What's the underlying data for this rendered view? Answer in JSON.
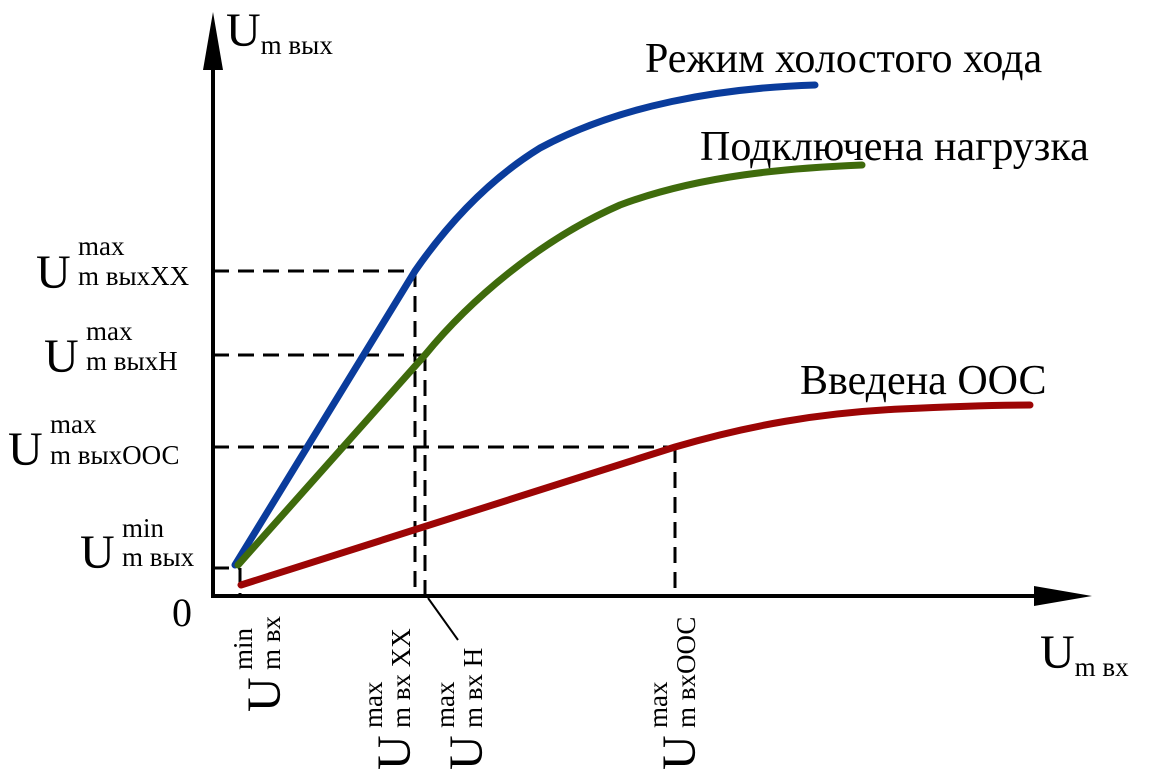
{
  "axes": {
    "y_symbol": "U",
    "y_sub": "m вых",
    "x_symbol": "U",
    "x_sub": "m вх",
    "origin": "0"
  },
  "curves": {
    "idle": {
      "label": "Режим холостого хода",
      "color": "#0a3c9c"
    },
    "load": {
      "label": "Подключена нагрузка",
      "color": "#3f6b0c"
    },
    "feedback": {
      "label": "Введена ООС",
      "color": "#9c0505"
    }
  },
  "y_marks": {
    "idle_max": {
      "symbol": "U",
      "sup": "max",
      "sub": "m выхXX"
    },
    "load_max": {
      "symbol": "U",
      "sup": "max",
      "sub": "m выхН"
    },
    "fb_max": {
      "symbol": "U",
      "sup": "max",
      "sub": "m выхООС"
    },
    "min": {
      "symbol": "U",
      "sup": "min",
      "sub": "m вых"
    }
  },
  "x_marks": {
    "min": {
      "symbol": "U",
      "sup": "min",
      "sub": "m вх"
    },
    "idle_max": {
      "symbol": "U",
      "sup": "max",
      "sub": "m вх XX"
    },
    "load_max": {
      "symbol": "U",
      "sup": "max",
      "sub": "m вх Н"
    },
    "fb_max": {
      "symbol": "U",
      "sup": "max",
      "sub": "m вхООС"
    }
  }
}
